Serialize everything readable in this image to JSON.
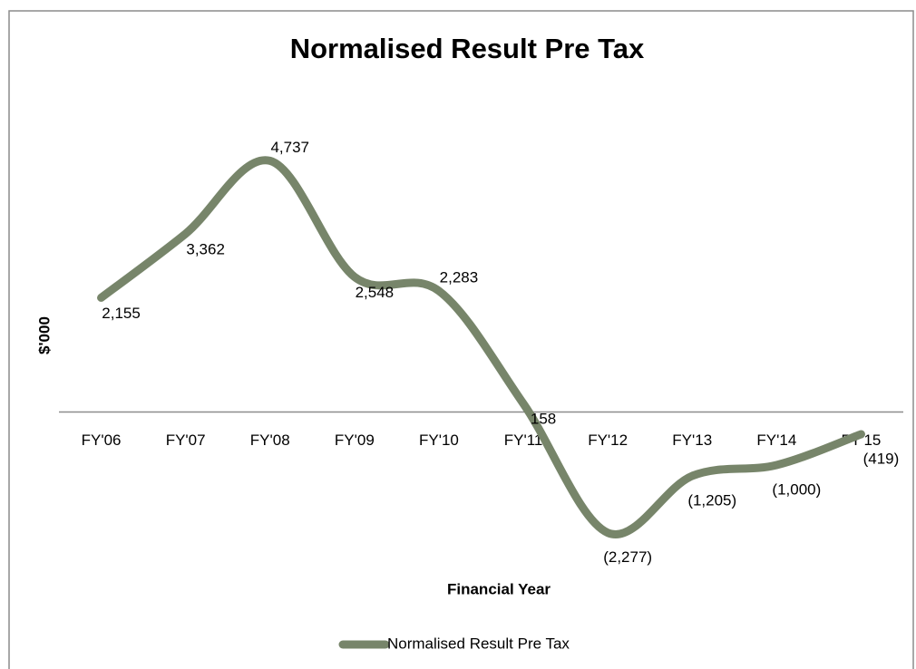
{
  "chart_data": {
    "type": "line",
    "title": "Normalised Result Pre Tax",
    "x_label": "Financial Year",
    "y_label": "$'000",
    "categories": [
      "FY'06",
      "FY'07",
      "FY'08",
      "FY'09",
      "FY'10",
      "FY'11",
      "FY'12",
      "FY'13",
      "FY'14",
      "FY'15"
    ],
    "series": [
      {
        "name": "Normalised Result Pre Tax",
        "color": "#77856a",
        "values": [
          2155,
          3362,
          4737,
          2548,
          2283,
          158,
          -2277,
          -1205,
          -1000,
          -419
        ],
        "value_labels": [
          "2,155",
          "3,362",
          "4,737",
          "2,548",
          "2,283",
          "158",
          "(2,277)",
          "(1,205)",
          "(1,000)",
          "(419)"
        ]
      }
    ],
    "ylim": [
      -3000,
      5000
    ],
    "smooth": true,
    "legend": "bottom"
  }
}
